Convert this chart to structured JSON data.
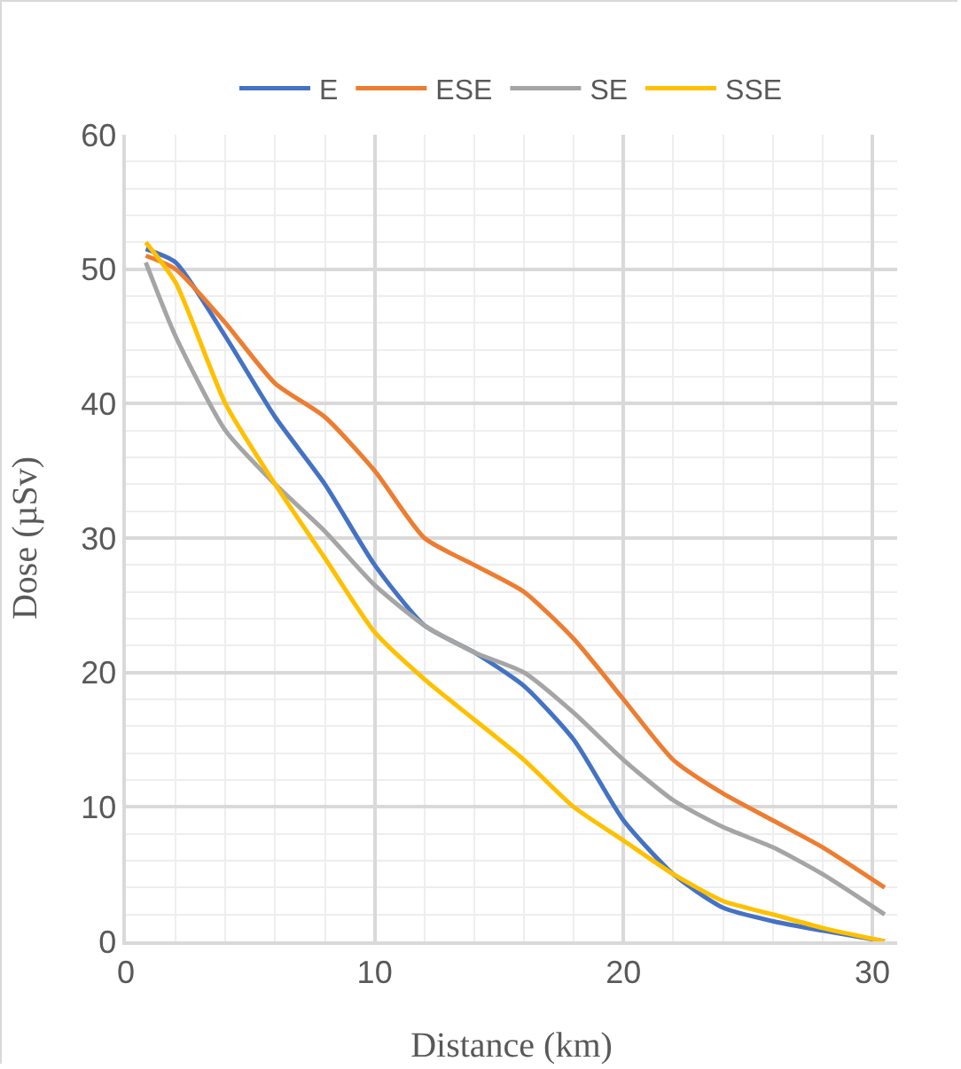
{
  "chart_data": {
    "type": "line",
    "xlabel": "Distance (km)",
    "ylabel": "Dose (µSv)",
    "x": [
      0.8,
      2,
      4,
      6,
      8,
      10,
      12,
      14,
      16,
      18,
      20,
      22,
      24,
      26,
      28,
      30.5
    ],
    "series": [
      {
        "name": "E",
        "color": "#4472c4",
        "values": [
          51.5,
          50.5,
          45,
          39,
          34,
          28,
          23.5,
          21.5,
          19,
          15,
          9,
          5,
          2.5,
          1.5,
          0.8,
          0
        ]
      },
      {
        "name": "ESE",
        "color": "#ed7d31",
        "values": [
          51,
          50,
          46,
          41.5,
          39,
          35,
          30,
          28,
          26,
          22.5,
          18,
          13.5,
          11,
          9,
          7,
          4
        ]
      },
      {
        "name": "SE",
        "color": "#a5a5a5",
        "values": [
          50.5,
          45,
          38,
          34,
          30.5,
          26.5,
          23.5,
          21.5,
          20,
          17,
          13.5,
          10.5,
          8.5,
          7,
          5,
          2
        ]
      },
      {
        "name": "SSE",
        "color": "#ffc000",
        "values": [
          52,
          49,
          40,
          34,
          28.5,
          23,
          19.5,
          16.5,
          13.5,
          10,
          7.5,
          5,
          3,
          2,
          1,
          0
        ]
      }
    ],
    "xlim": [
      0,
      31
    ],
    "xticks": [
      0,
      {
        "value": 2,
        "label": null
      },
      {
        "value": 4,
        "label": null
      },
      {
        "value": 6,
        "label": null
      },
      {
        "value": 8,
        "label": null
      },
      10,
      {
        "value": 12,
        "label": null
      },
      {
        "value": 14,
        "label": null
      },
      {
        "value": 16,
        "label": null
      },
      {
        "value": 18,
        "label": null
      },
      20,
      {
        "value": 22,
        "label": null
      },
      {
        "value": 24,
        "label": null
      },
      {
        "value": 26,
        "label": null
      },
      {
        "value": 28,
        "label": null
      },
      30
    ],
    "ylim": [
      0,
      60
    ],
    "yticks": [
      0,
      {
        "value": 2,
        "label": null
      },
      {
        "value": 4,
        "label": null
      },
      {
        "value": 6,
        "label": null
      },
      {
        "value": 8,
        "label": null
      },
      10,
      {
        "value": 12,
        "label": null
      },
      {
        "value": 14,
        "label": null
      },
      {
        "value": 16,
        "label": null
      },
      {
        "value": 18,
        "label": null
      },
      20,
      {
        "value": 22,
        "label": null
      },
      {
        "value": 24,
        "label": null
      },
      {
        "value": 26,
        "label": null
      },
      {
        "value": 28,
        "label": null
      },
      30,
      {
        "value": 32,
        "label": null
      },
      {
        "value": 34,
        "label": null
      },
      {
        "value": 36,
        "label": null
      },
      {
        "value": 38,
        "label": null
      },
      40,
      {
        "value": 42,
        "label": null
      },
      {
        "value": 44,
        "label": null
      },
      {
        "value": 46,
        "label": null
      },
      {
        "value": 48,
        "label": null
      },
      50,
      {
        "value": 52,
        "label": null
      },
      {
        "value": 54,
        "label": null
      },
      {
        "value": 56,
        "label": null
      },
      {
        "value": 58,
        "label": null
      },
      60
    ],
    "grid": true,
    "legend": "top",
    "marker": "none",
    "line_style": "solid"
  }
}
